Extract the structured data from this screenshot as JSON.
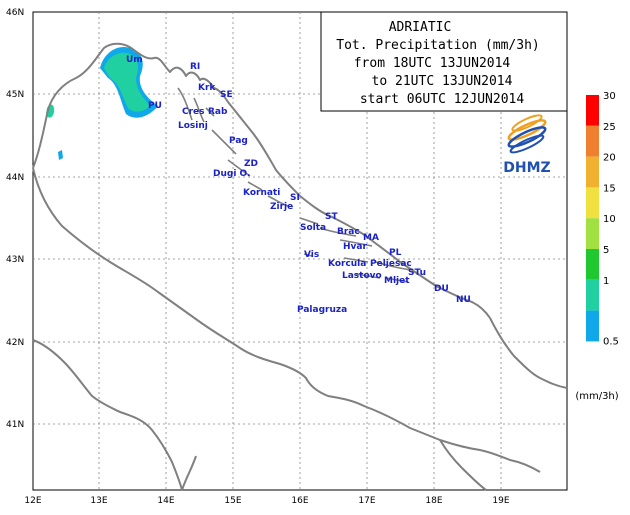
{
  "title_box": {
    "line1": "ADRIATIC",
    "line2": "Tot. Precipitation (mm/3h)",
    "line3": "from 18UTC 13JUN2014",
    "line4": "to 21UTC 13JUN2014",
    "line5": "start 06UTC 12JUN2014"
  },
  "logo": {
    "text": "DHMZ"
  },
  "lat_labels": [
    "46N",
    "45N",
    "44N",
    "43N",
    "42N",
    "41N"
  ],
  "lon_labels": [
    "12E",
    "13E",
    "14E",
    "15E",
    "16E",
    "17E",
    "18E",
    "19E"
  ],
  "places": [
    {
      "name": "Um"
    },
    {
      "name": "PU"
    },
    {
      "name": "RI"
    },
    {
      "name": "Krk"
    },
    {
      "name": "SE"
    },
    {
      "name": "Cres"
    },
    {
      "name": "Rab"
    },
    {
      "name": "Losinj"
    },
    {
      "name": "Pag"
    },
    {
      "name": "ZD"
    },
    {
      "name": "Dugi O."
    },
    {
      "name": "Kornati"
    },
    {
      "name": "SI"
    },
    {
      "name": "Zirje"
    },
    {
      "name": "ST"
    },
    {
      "name": "Solta"
    },
    {
      "name": "Brac"
    },
    {
      "name": "MA"
    },
    {
      "name": "Hvar"
    },
    {
      "name": "PL"
    },
    {
      "name": "Vis"
    },
    {
      "name": "Korcula"
    },
    {
      "name": "Peljesac"
    },
    {
      "name": "STu"
    },
    {
      "name": "Lastovo"
    },
    {
      "name": "Mljet"
    },
    {
      "name": "DU"
    },
    {
      "name": "NU"
    },
    {
      "name": "Palagruza"
    }
  ],
  "legend": {
    "unit": "(mm/3h)",
    "levels": [
      {
        "label": "30",
        "color": "#ff0000"
      },
      {
        "label": "25",
        "color": "#f08030"
      },
      {
        "label": "20",
        "color": "#f0b030"
      },
      {
        "label": "15",
        "color": "#f0e040"
      },
      {
        "label": "10",
        "color": "#a0e040"
      },
      {
        "label": "5",
        "color": "#20c830"
      },
      {
        "label": "1",
        "color": "#20d0a0"
      },
      {
        "label": "0.5",
        "color": "#10a8e8"
      }
    ]
  },
  "colors": {
    "label": "#1a22c8",
    "coast": "#808080",
    "grid": "#888888"
  }
}
